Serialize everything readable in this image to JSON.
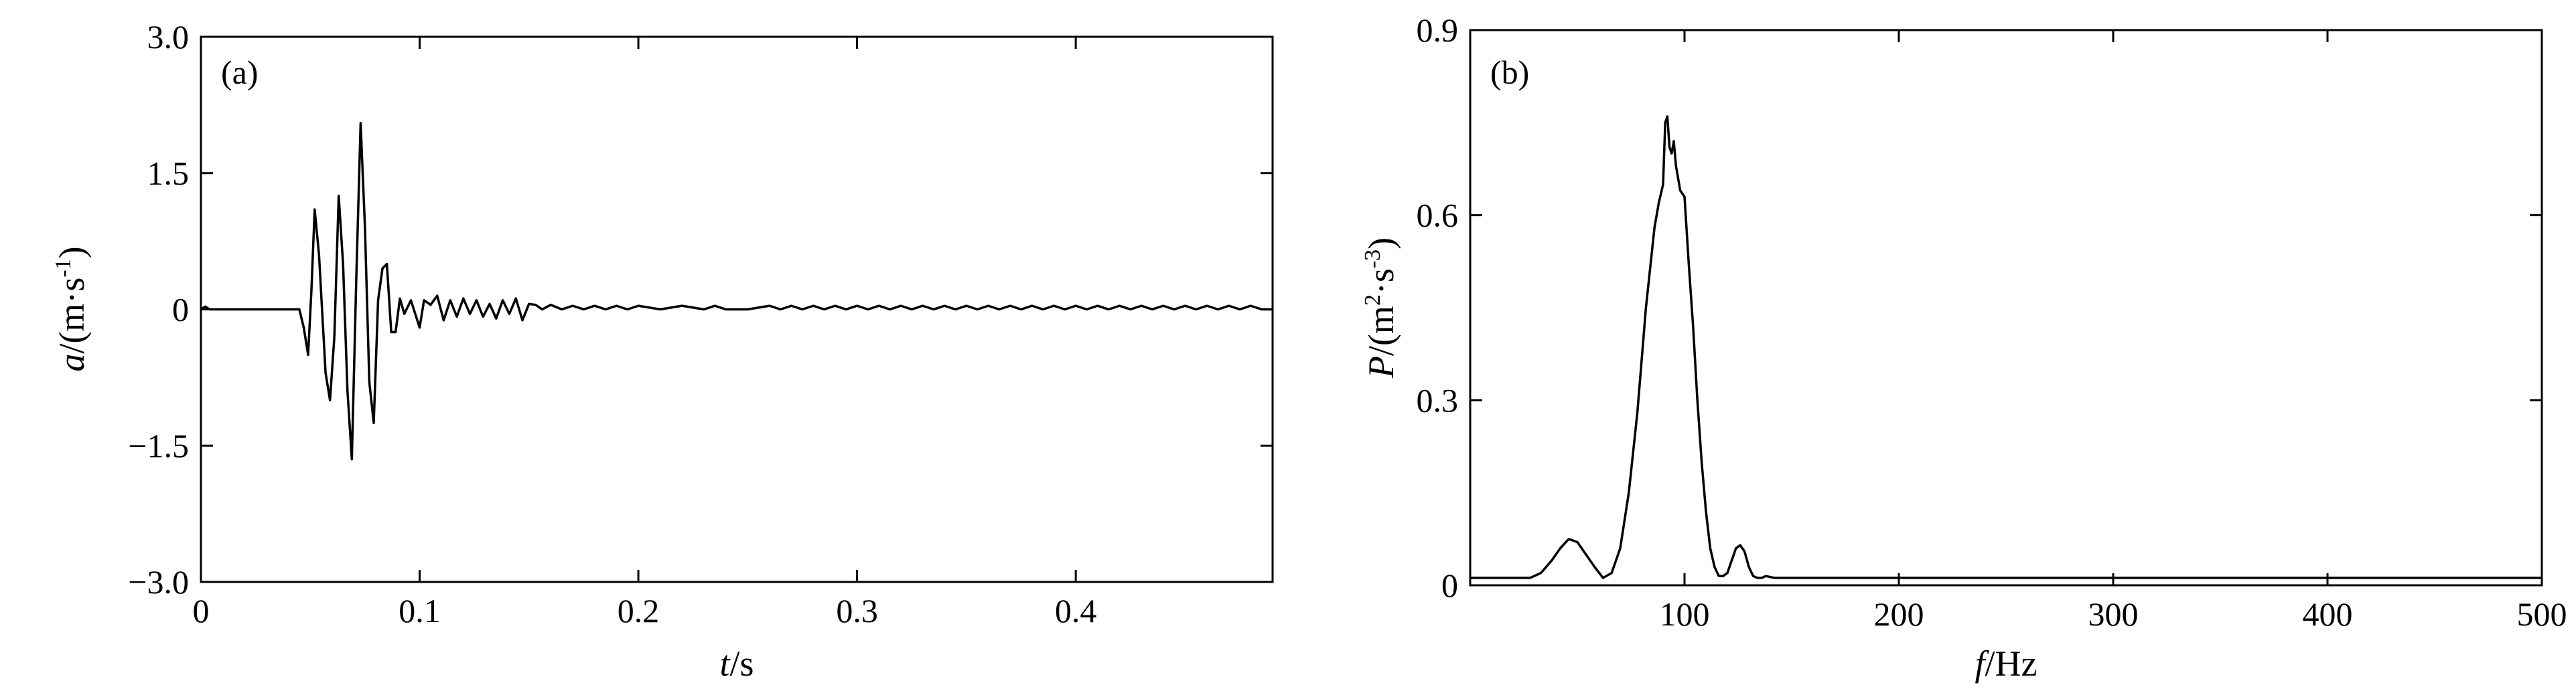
{
  "chart_data": [
    {
      "type": "line",
      "panel_label": "(a)",
      "xlabel_var": "t",
      "xlabel_unit": "/s",
      "ylabel_var": "a",
      "ylabel_unit": "/(m·s",
      "ylabel_unit_sup": "-1",
      "ylabel_unit_close": ")",
      "xlim": [
        0,
        0.49
      ],
      "ylim": [
        -3.0,
        3.0
      ],
      "xticks": [
        0,
        0.1,
        0.2,
        0.3,
        0.4
      ],
      "xtick_labels": [
        "0",
        "0.1",
        "0.2",
        "0.3",
        "0.4"
      ],
      "yticks": [
        -3.0,
        -1.5,
        0,
        1.5,
        3.0
      ],
      "ytick_labels": [
        "−3.0",
        "−1.5",
        "0",
        "1.5",
        "3.0"
      ],
      "grid": false,
      "x": [
        0,
        0.002,
        0.004,
        0.008,
        0.02,
        0.035,
        0.045,
        0.047,
        0.049,
        0.0505,
        0.052,
        0.054,
        0.057,
        0.059,
        0.061,
        0.063,
        0.065,
        0.067,
        0.069,
        0.071,
        0.073,
        0.075,
        0.077,
        0.079,
        0.081,
        0.083,
        0.085,
        0.087,
        0.089,
        0.091,
        0.093,
        0.096,
        0.1,
        0.102,
        0.105,
        0.108,
        0.111,
        0.114,
        0.117,
        0.12,
        0.123,
        0.126,
        0.129,
        0.132,
        0.135,
        0.138,
        0.141,
        0.144,
        0.147,
        0.15,
        0.153,
        0.156,
        0.16,
        0.165,
        0.17,
        0.175,
        0.18,
        0.185,
        0.19,
        0.195,
        0.2,
        0.21,
        0.22,
        0.23,
        0.235,
        0.24,
        0.25,
        0.26,
        0.265,
        0.27,
        0.275,
        0.28,
        0.285,
        0.29,
        0.295,
        0.3,
        0.305,
        0.31,
        0.315,
        0.32,
        0.325,
        0.33,
        0.335,
        0.34,
        0.345,
        0.35,
        0.355,
        0.36,
        0.365,
        0.37,
        0.375,
        0.38,
        0.385,
        0.39,
        0.395,
        0.4,
        0.405,
        0.41,
        0.415,
        0.42,
        0.425,
        0.43,
        0.435,
        0.44,
        0.445,
        0.45,
        0.455,
        0.46,
        0.465,
        0.47,
        0.475,
        0.48,
        0.485,
        0.49
      ],
      "y": [
        0,
        0.03,
        0,
        0,
        0,
        0,
        0,
        -0.2,
        -0.5,
        0.2,
        1.1,
        0.6,
        -0.7,
        -1.0,
        -0.3,
        1.25,
        0.5,
        -0.9,
        -1.65,
        0.3,
        2.05,
        0.9,
        -0.8,
        -1.25,
        0.1,
        0.45,
        0.5,
        -0.25,
        -0.25,
        0.12,
        -0.05,
        0.1,
        -0.2,
        0.1,
        0.05,
        0.15,
        -0.12,
        0.1,
        -0.08,
        0.12,
        -0.05,
        0.1,
        -0.08,
        0.06,
        -0.1,
        0.1,
        -0.05,
        0.12,
        -0.12,
        0.06,
        0.05,
        0,
        0.05,
        0,
        0.04,
        0,
        0.04,
        0,
        0.04,
        0,
        0.04,
        0,
        0.04,
        0,
        0.04,
        0,
        0,
        0.04,
        0,
        0.04,
        0,
        0.04,
        0,
        0.04,
        0,
        0.04,
        0,
        0.04,
        0,
        0.04,
        0,
        0.04,
        0,
        0.04,
        0,
        0.04,
        0,
        0.04,
        0,
        0.04,
        0,
        0.04,
        0,
        0.04,
        0,
        0.04,
        0,
        0.04,
        0,
        0.04,
        0,
        0.04,
        0,
        0.04,
        0,
        0.04,
        0,
        0.04,
        0,
        0.04,
        0,
        0.04,
        0,
        0
      ]
    },
    {
      "type": "line",
      "panel_label": "(b)",
      "xlabel_var": "f",
      "xlabel_unit": "/Hz",
      "ylabel_var": "P",
      "ylabel_unit": "/(m",
      "ylabel_unit_sup": "2",
      "ylabel_unit_mid": "·s",
      "ylabel_unit_sup2": "-3",
      "ylabel_unit_close": ")",
      "xlim": [
        0,
        500
      ],
      "ylim": [
        0,
        0.9
      ],
      "xticks": [
        100,
        200,
        300,
        400,
        500
      ],
      "xtick_labels": [
        "100",
        "200",
        "300",
        "400",
        "500"
      ],
      "yticks": [
        0,
        0.3,
        0.6,
        0.9
      ],
      "ytick_labels": [
        "0",
        "0.3",
        "0.6",
        "0.9"
      ],
      "grid": false,
      "x": [
        0,
        10,
        20,
        28,
        33,
        38,
        42,
        46,
        50,
        54,
        58,
        62,
        66,
        70,
        74,
        78,
        82,
        86,
        88,
        90,
        91,
        92,
        93,
        94,
        95,
        96,
        97,
        98,
        100,
        102,
        104,
        106,
        108,
        110,
        112,
        114,
        116,
        118,
        120,
        122,
        124,
        126,
        128,
        130,
        132,
        134,
        136,
        138,
        142,
        146,
        150,
        160,
        200,
        300,
        400,
        500
      ],
      "y": [
        0.012,
        0.012,
        0.012,
        0.012,
        0.02,
        0.04,
        0.06,
        0.075,
        0.07,
        0.05,
        0.03,
        0.012,
        0.02,
        0.06,
        0.15,
        0.28,
        0.45,
        0.58,
        0.62,
        0.65,
        0.75,
        0.76,
        0.71,
        0.7,
        0.72,
        0.68,
        0.66,
        0.64,
        0.63,
        0.52,
        0.42,
        0.3,
        0.2,
        0.12,
        0.06,
        0.03,
        0.015,
        0.015,
        0.02,
        0.04,
        0.06,
        0.065,
        0.055,
        0.03,
        0.015,
        0.012,
        0.012,
        0.015,
        0.012,
        0.012,
        0.012,
        0.012,
        0.012,
        0.012,
        0.012,
        0.012
      ]
    }
  ]
}
